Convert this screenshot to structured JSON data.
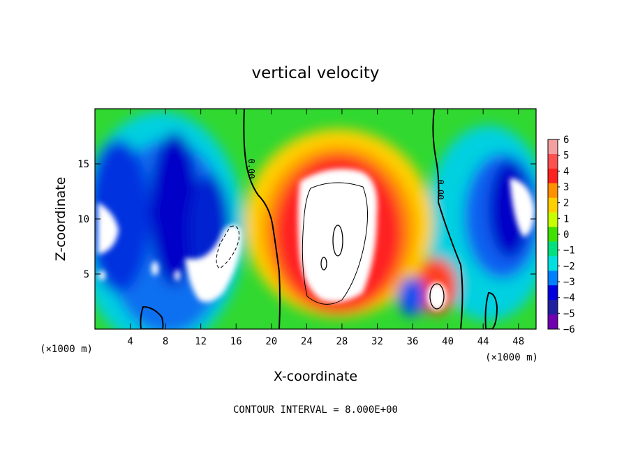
{
  "chart_data": {
    "type": "heatmap",
    "title": "vertical velocity",
    "xlabel": "X-coordinate",
    "ylabel": "Z-coordinate",
    "x_unit": "(×1000 m)",
    "xlim": [
      0,
      50
    ],
    "ylim": [
      0,
      20
    ],
    "x_ticks": [
      "4",
      "8",
      "12",
      "16",
      "20",
      "24",
      "28",
      "32",
      "36",
      "40",
      "44",
      "48"
    ],
    "y_ticks": [
      "5",
      "10",
      "15"
    ],
    "colorbar": {
      "labels": [
        "6",
        "5",
        "4",
        "3",
        "2",
        "1",
        "0",
        "−1",
        "−2",
        "−3",
        "−4",
        "−5",
        "−6"
      ],
      "min": -6,
      "max": 6
    },
    "contour_label": "0.00",
    "footer": "CONTOUR INTERVAL = 8.000E+00",
    "colormap": [
      "#f4a0a0",
      "#ff5050",
      "#ff2020",
      "#ff9000",
      "#ffd000",
      "#c8ff00",
      "#40e000",
      "#00e080",
      "#00e0e0",
      "#0080ff",
      "#0000e0",
      "#2020a0",
      "#7000b0"
    ]
  }
}
